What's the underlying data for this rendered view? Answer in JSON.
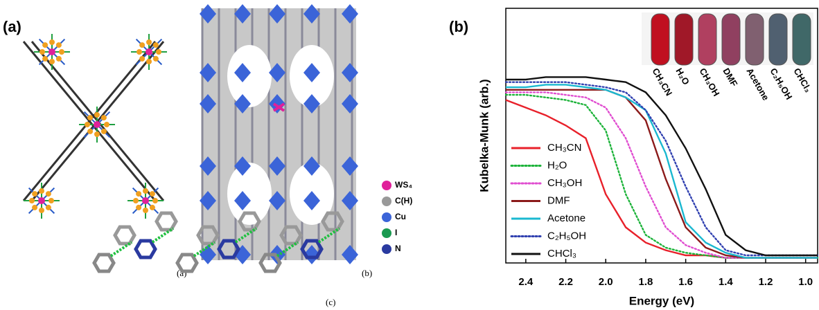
{
  "figure": {
    "panel_label": "(a)",
    "sublabels": [
      "(a)",
      "(b)",
      "(c)"
    ],
    "legend": [
      "WS₄",
      "C(H)",
      "Cu",
      "I",
      "N"
    ]
  },
  "chart_data": {
    "type": "line",
    "panel_label": "(b)",
    "x_label": "Energy (eV)",
    "y_label": "Kubelka-Munk (arb.)",
    "x": [
      2.5,
      2.4,
      2.3,
      2.2,
      2.1,
      2.0,
      1.9,
      1.8,
      1.7,
      1.6,
      1.5,
      1.4,
      1.3,
      1.2,
      1.1,
      1.0,
      0.94
    ],
    "series": [
      {
        "name": "CH₃CN",
        "color": "#e8202a",
        "style": "solid",
        "values": [
          0.64,
          0.61,
          0.58,
          0.54,
          0.49,
          0.27,
          0.14,
          0.08,
          0.05,
          0.03,
          0.03,
          0.02,
          0.02,
          0.02,
          0.02,
          0.02,
          0.02
        ]
      },
      {
        "name": "H₂O",
        "color": "#1db33a",
        "style": "dotted",
        "values": [
          0.66,
          0.66,
          0.65,
          0.64,
          0.62,
          0.52,
          0.27,
          0.11,
          0.06,
          0.04,
          0.03,
          0.02,
          0.02,
          0.02,
          0.02,
          0.02,
          0.02
        ]
      },
      {
        "name": "CH₃OH",
        "color": "#e04dd0",
        "style": "dotted",
        "values": [
          0.67,
          0.67,
          0.67,
          0.66,
          0.65,
          0.61,
          0.49,
          0.3,
          0.14,
          0.07,
          0.04,
          0.02,
          0.02,
          0.02,
          0.02,
          0.02,
          0.02
        ]
      },
      {
        "name": "DMF",
        "color": "#8b1a1a",
        "style": "solid",
        "values": [
          0.68,
          0.68,
          0.68,
          0.68,
          0.68,
          0.68,
          0.65,
          0.56,
          0.33,
          0.14,
          0.06,
          0.03,
          0.02,
          0.02,
          0.02,
          0.02,
          0.02
        ]
      },
      {
        "name": "Acetone",
        "color": "#1ab8d0",
        "style": "solid",
        "values": [
          0.69,
          0.69,
          0.7,
          0.7,
          0.69,
          0.68,
          0.65,
          0.6,
          0.43,
          0.16,
          0.08,
          0.04,
          0.02,
          0.02,
          0.02,
          0.02,
          0.02
        ]
      },
      {
        "name": "C₂H₅OH",
        "color": "#3040b0",
        "style": "dotted",
        "values": [
          0.71,
          0.71,
          0.71,
          0.71,
          0.7,
          0.69,
          0.67,
          0.6,
          0.48,
          0.3,
          0.14,
          0.05,
          0.03,
          0.03,
          0.03,
          0.03,
          0.03
        ]
      },
      {
        "name": "CHCl₃",
        "color": "#111111",
        "style": "solid",
        "values": [
          0.72,
          0.72,
          0.73,
          0.73,
          0.73,
          0.72,
          0.71,
          0.67,
          0.58,
          0.45,
          0.29,
          0.11,
          0.05,
          0.03,
          0.03,
          0.03,
          0.03
        ]
      }
    ],
    "xlim": [
      2.5,
      0.94
    ],
    "ylim": [
      0,
      1
    ],
    "xticks": [
      2.4,
      2.2,
      {
        "value": 2,
        "label": "2.0"
      },
      1.8,
      1.6,
      1.4,
      1.2,
      {
        "value": 1,
        "label": "1.0"
      }
    ],
    "inset_labels": [
      "CH₃CN",
      "H₂O",
      "CH₃OH",
      "DMF",
      "Acetone",
      "C₂H₅OH",
      "CHCl₃"
    ]
  }
}
